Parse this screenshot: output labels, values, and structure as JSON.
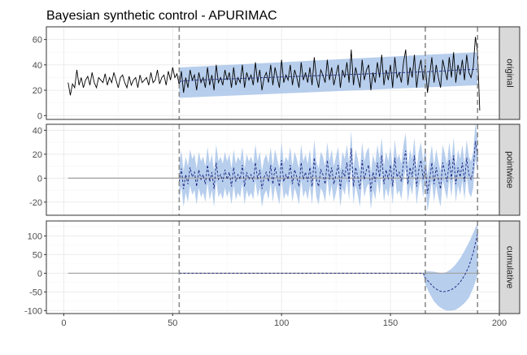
{
  "chart_data": {
    "type": "line",
    "title": "Bayesian synthetic control - APURIMAC",
    "xlabel": "",
    "ylabel": "",
    "x_range": [
      -8,
      200
    ],
    "x_ticks": [
      0,
      50,
      100,
      150,
      200
    ],
    "grid": true,
    "legend": "none",
    "intervention_lines": [
      53,
      166,
      190
    ],
    "colors": {
      "band": "#aac6ea",
      "band_opacity": 0.85,
      "observed": "#000000",
      "predicted": "#1a237e",
      "zero_line": "#a6a6a6",
      "vline": "#8c8c8c",
      "strip_fill": "#d9d9d9",
      "grid_major": "#ebebeb",
      "grid_minor": "#f5f5f5"
    },
    "panels": [
      {
        "name": "original",
        "ylim": [
          -3,
          70
        ],
        "y_ticks": [
          0,
          20,
          40,
          60
        ],
        "observed_x": [
          2,
          3,
          4,
          5,
          6,
          7,
          8,
          9,
          10,
          11,
          12,
          13,
          14,
          15,
          16,
          17,
          18,
          19,
          20,
          21,
          22,
          23,
          24,
          25,
          26,
          27,
          28,
          29,
          30,
          31,
          32,
          33,
          34,
          35,
          36,
          37,
          38,
          39,
          40,
          41,
          42,
          43,
          44,
          45,
          46,
          47,
          48,
          49,
          50,
          51,
          52,
          53,
          54,
          55,
          56,
          57,
          58,
          59,
          60,
          61,
          62,
          63,
          64,
          65,
          66,
          67,
          68,
          69,
          70,
          71,
          72,
          73,
          74,
          75,
          76,
          77,
          78,
          79,
          80,
          81,
          82,
          83,
          84,
          85,
          86,
          87,
          88,
          89,
          90,
          91,
          92,
          93,
          94,
          95,
          96,
          97,
          98,
          99,
          100,
          101,
          102,
          103,
          104,
          105,
          106,
          107,
          108,
          109,
          110,
          111,
          112,
          113,
          114,
          115,
          116,
          117,
          118,
          119,
          120,
          121,
          122,
          123,
          124,
          125,
          126,
          127,
          128,
          129,
          130,
          131,
          132,
          133,
          134,
          135,
          136,
          137,
          138,
          139,
          140,
          141,
          142,
          143,
          144,
          145,
          146,
          147,
          148,
          149,
          150,
          151,
          152,
          153,
          154,
          155,
          156,
          157,
          158,
          159,
          160,
          161,
          162,
          163,
          164,
          165,
          166,
          167,
          168,
          169,
          170,
          171,
          172,
          173,
          174,
          175,
          176,
          177,
          178,
          179,
          180,
          181,
          182,
          183,
          184,
          185,
          186,
          187,
          188,
          189,
          190,
          191
        ],
        "observed_y": [
          26,
          16,
          25,
          22,
          36,
          24,
          30,
          22,
          28,
          31,
          24,
          34,
          26,
          22,
          30,
          28,
          26,
          33,
          24,
          30,
          26,
          34,
          28,
          22,
          30,
          32,
          26,
          22,
          31,
          24,
          28,
          30,
          22,
          32,
          26,
          28,
          30,
          24,
          34,
          26,
          28,
          36,
          25,
          30,
          32,
          24,
          35,
          28,
          38,
          30,
          33,
          24,
          35,
          18,
          30,
          22,
          36,
          28,
          32,
          20,
          34,
          26,
          30,
          22,
          38,
          24,
          32,
          20,
          40,
          26,
          30,
          24,
          36,
          28,
          34,
          22,
          38,
          24,
          30,
          26,
          40,
          22,
          34,
          28,
          32,
          24,
          42,
          26,
          36,
          20,
          30,
          34,
          26,
          40,
          24,
          38,
          30,
          22,
          44,
          26,
          32,
          28,
          40,
          24,
          36,
          30,
          22,
          42,
          28,
          34,
          26,
          38,
          24,
          46,
          30,
          22,
          36,
          32,
          26,
          44,
          28,
          38,
          24,
          32,
          40,
          22,
          36,
          30,
          42,
          26,
          52,
          24,
          38,
          30,
          22,
          44,
          28,
          36,
          40,
          20,
          34,
          26,
          42,
          30,
          48,
          24,
          36,
          28,
          40,
          22,
          46,
          30,
          34,
          26,
          42,
          52,
          24,
          38,
          30,
          48,
          22,
          36,
          44,
          28,
          40,
          18,
          32,
          46,
          26,
          40,
          30,
          22,
          44,
          36,
          28,
          46,
          30,
          50,
          26,
          40,
          32,
          44,
          28,
          48,
          34,
          30,
          38,
          62,
          50,
          4
        ],
        "predicted_x": [
          53,
          61,
          69,
          77,
          85,
          93,
          101,
          109,
          117,
          125,
          133,
          141,
          149,
          157,
          165,
          173,
          181,
          190
        ],
        "predicted_y": [
          27,
          28,
          28.5,
          29,
          29.5,
          30,
          30.5,
          31,
          31.5,
          32,
          32.5,
          33,
          33.5,
          34,
          34.5,
          35,
          36,
          36.5
        ],
        "band_x": [
          53,
          190
        ],
        "band_lower": [
          14,
          24
        ],
        "band_upper": [
          38,
          50
        ]
      },
      {
        "name": "pointwise",
        "ylim": [
          -31,
          45
        ],
        "y_ticks": [
          -20,
          0,
          20,
          40
        ],
        "zero_line": true,
        "effect_x": [
          53,
          54,
          55,
          56,
          57,
          58,
          59,
          60,
          61,
          62,
          63,
          64,
          65,
          66,
          67,
          68,
          69,
          70,
          71,
          72,
          73,
          74,
          75,
          76,
          77,
          78,
          79,
          80,
          81,
          82,
          83,
          84,
          85,
          86,
          87,
          88,
          89,
          90,
          91,
          92,
          93,
          94,
          95,
          96,
          97,
          98,
          99,
          100,
          101,
          102,
          103,
          104,
          105,
          106,
          107,
          108,
          109,
          110,
          111,
          112,
          113,
          114,
          115,
          116,
          117,
          118,
          119,
          120,
          121,
          122,
          123,
          124,
          125,
          126,
          127,
          128,
          129,
          130,
          131,
          132,
          133,
          134,
          135,
          136,
          137,
          138,
          139,
          140,
          141,
          142,
          143,
          144,
          145,
          146,
          147,
          148,
          149,
          150,
          151,
          152,
          153,
          154,
          155,
          156,
          157,
          158,
          159,
          160,
          161,
          162,
          163,
          164,
          165,
          166,
          167,
          168,
          169,
          170,
          171,
          172,
          173,
          174,
          175,
          176,
          177,
          178,
          179,
          180,
          181,
          182,
          183,
          184,
          185,
          186,
          187,
          188,
          189,
          190
        ],
        "effect_y": [
          -3,
          8,
          -9,
          3,
          -5,
          9,
          1,
          5,
          -7,
          7,
          -1,
          3,
          -5,
          11,
          -3,
          5,
          -9,
          13,
          -1,
          3,
          -3,
          7,
          -1,
          5,
          -7,
          9,
          -3,
          3,
          -1,
          11,
          -7,
          5,
          -1,
          3,
          -3,
          13,
          -1,
          7,
          -9,
          1,
          5,
          -3,
          11,
          -5,
          9,
          1,
          -7,
          15,
          -3,
          3,
          -1,
          11,
          -5,
          7,
          1,
          -7,
          13,
          -1,
          5,
          -3,
          9,
          -7,
          17,
          -1,
          -7,
          7,
          3,
          -5,
          15,
          -1,
          9,
          -5,
          3,
          11,
          -9,
          7,
          1,
          13,
          -3,
          25,
          -7,
          9,
          1,
          -9,
          15,
          -1,
          7,
          11,
          -11,
          5,
          -3,
          13,
          1,
          19,
          -5,
          7,
          -1,
          11,
          -7,
          17,
          1,
          5,
          -3,
          13,
          23,
          -5,
          9,
          1,
          19,
          -7,
          7,
          15,
          -1,
          11,
          -13,
          -1,
          13,
          -5,
          9,
          -1,
          -9,
          13,
          5,
          -3,
          15,
          -1,
          19,
          -5,
          9,
          1,
          13,
          -3,
          17,
          3,
          -1,
          7,
          31,
          19,
          -1
        ],
        "band_halfwidth": 15
      },
      {
        "name": "cumulative",
        "ylim": [
          -108,
          140
        ],
        "y_ticks": [
          -100,
          -50,
          0,
          50,
          100
        ],
        "zero_line": true,
        "cum_x": [
          53,
          165,
          166,
          168,
          170,
          172,
          174,
          176,
          178,
          180,
          182,
          184,
          186,
          188,
          190
        ],
        "cum_y": [
          0,
          0,
          -12,
          -26,
          -38,
          -46,
          -50,
          -48,
          -44,
          -36,
          -24,
          -6,
          18,
          55,
          105
        ],
        "band_lower": [
          0,
          0,
          -30,
          -55,
          -75,
          -88,
          -96,
          -100,
          -100,
          -98,
          -90,
          -80,
          -66,
          -40,
          -5
        ],
        "band_upper": [
          0,
          0,
          5,
          5,
          4,
          2,
          0,
          4,
          12,
          24,
          40,
          60,
          82,
          108,
          135
        ]
      }
    ]
  }
}
